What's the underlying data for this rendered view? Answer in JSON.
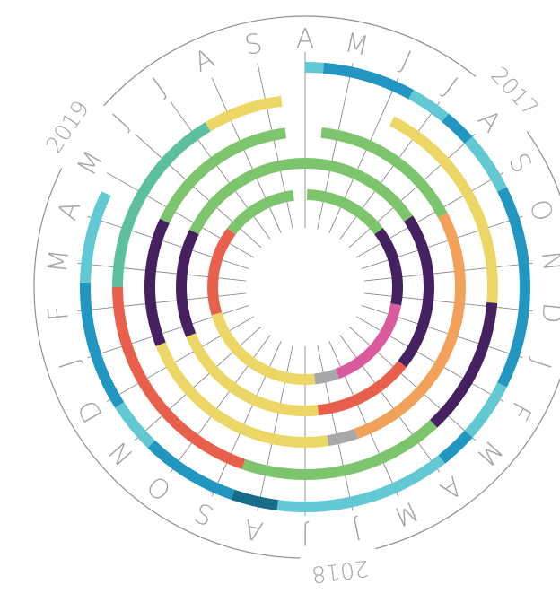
{
  "chart_data": {
    "type": "radial-timeline",
    "months": [
      "A",
      "M",
      "J",
      "J",
      "A",
      "S",
      "O",
      "N",
      "D",
      "J",
      "F",
      "M",
      "A",
      "M",
      "J",
      "J",
      "A",
      "S",
      "O",
      "N",
      "D",
      "J",
      "F",
      "M",
      "A",
      "M",
      "J",
      "J",
      "A",
      "S"
    ],
    "years": [
      "2017",
      "2018",
      "2019"
    ],
    "rings": [
      {
        "segments": [
          {
            "start": 0,
            "end": 0.4,
            "color": "#62c9d4"
          },
          {
            "start": 0.4,
            "end": 2.4,
            "color": "#2196c0"
          },
          {
            "start": 2.4,
            "end": 3.3,
            "color": "#62c9d4"
          },
          {
            "start": 3.3,
            "end": 4,
            "color": "#2196c0"
          },
          {
            "start": 4,
            "end": 5.3,
            "color": "#62c9d4"
          },
          {
            "start": 5.3,
            "end": 9.7,
            "color": "#2196c0"
          },
          {
            "start": 9.7,
            "end": 11,
            "color": "#62c9d4"
          },
          {
            "start": 11,
            "end": 11.8,
            "color": "#2196c0"
          },
          {
            "start": 11.8,
            "end": 15.6,
            "color": "#62c9d4"
          },
          {
            "start": 15.6,
            "end": 16.6,
            "color": "#166d8a"
          },
          {
            "start": 16.6,
            "end": 18.7,
            "color": "#2196c0"
          },
          {
            "start": 18.7,
            "end": 19.8,
            "color": "#62c9d4"
          },
          {
            "start": 19.8,
            "end": 22.6,
            "color": "#2196c0"
          },
          {
            "start": 22.6,
            "end": 24.6,
            "color": "#62c9d4"
          }
        ]
      },
      {
        "segments": [
          {
            "start": 2.3,
            "end": 7.9,
            "color": "#ecd666"
          },
          {
            "start": 7.9,
            "end": 11.4,
            "color": "#45215f"
          },
          {
            "start": 11.4,
            "end": 16.6,
            "color": "#7dc56c"
          },
          {
            "start": 16.6,
            "end": 22.5,
            "color": "#e8604c"
          },
          {
            "start": 22.5,
            "end": 27.4,
            "color": "#5cbfa0"
          },
          {
            "start": 27.4,
            "end": 29.4,
            "color": "#ecd666"
          }
        ]
      },
      {
        "segments": [
          {
            "start": 0.5,
            "end": 5.2,
            "color": "#7dc56c"
          },
          {
            "start": 5.2,
            "end": 13.4,
            "color": "#f2a15a"
          },
          {
            "start": 13.4,
            "end": 14.3,
            "color": "#a8a8a8"
          },
          {
            "start": 14.3,
            "end": 20.7,
            "color": "#ecd666"
          },
          {
            "start": 20.7,
            "end": 24.6,
            "color": "#45215f"
          },
          {
            "start": 24.6,
            "end": 29.4,
            "color": "#7dc56c"
          }
        ]
      },
      {
        "segments": [
          {
            "start": 4.7,
            "end": 10.7,
            "color": "#45215f"
          },
          {
            "start": 10.7,
            "end": 14.5,
            "color": "#e8604c"
          },
          {
            "start": 14.5,
            "end": 20.6,
            "color": "#ecd666"
          },
          {
            "start": 20.6,
            "end": 24.7,
            "color": "#45215f"
          },
          {
            "start": 24.7,
            "end": 34.7,
            "color": "#7dc56c"
          }
        ]
      },
      {
        "segments": [
          {
            "start": 0.1,
            "end": 4.4,
            "color": "#7dc56c"
          },
          {
            "start": 4.4,
            "end": 8.4,
            "color": "#45215f"
          },
          {
            "start": 8.4,
            "end": 13.3,
            "color": "#db5a9d"
          },
          {
            "start": 13.3,
            "end": 14.5,
            "color": "#a8a8a8"
          },
          {
            "start": 14.5,
            "end": 21.1,
            "color": "#ecd666"
          },
          {
            "start": 21.1,
            "end": 25.6,
            "color": "#e8604c"
          },
          {
            "start": 25.6,
            "end": 29.4,
            "color": "#7dc56c"
          }
        ]
      }
    ]
  }
}
